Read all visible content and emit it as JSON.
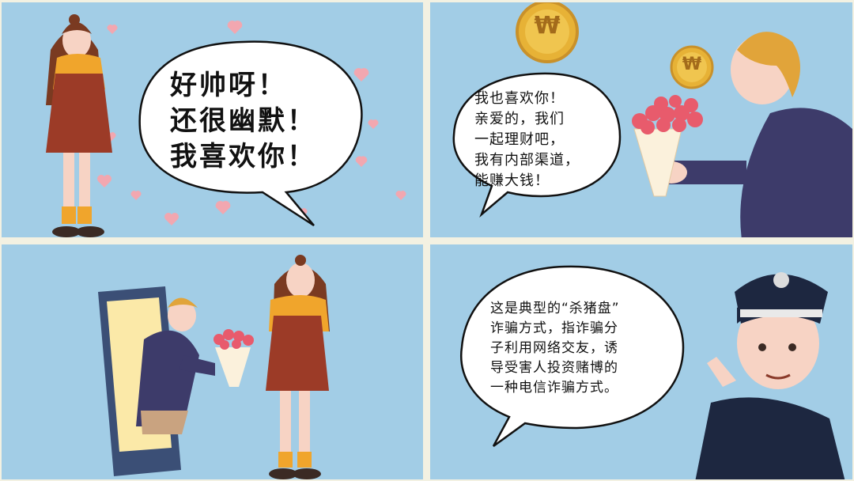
{
  "panel1": {
    "speech": [
      "好帅呀！",
      "还很幽默！",
      "我喜欢你！"
    ]
  },
  "panel2": {
    "coin_symbol": "₩",
    "speech": [
      "我也喜欢你！",
      "亲爱的，我们",
      "一起理财吧，",
      "我有内部渠道，",
      "能赚大钱！"
    ]
  },
  "panel3": {},
  "panel4": {
    "speech": [
      "这是典型的“杀猪盘”",
      "诈骗方式，指诈骗分",
      "子利用网络交友，诱",
      "导受害人投资赌博的",
      "一种电信诈骗方式。"
    ]
  },
  "colors": {
    "background": "#a2cde6",
    "gutter": "#f3f1e2",
    "dress": "#9c3b27",
    "sweater": "#f0a52c",
    "hair_girl": "#7a3a21",
    "hair_man": "#e1a43a",
    "man_jacket": "#3d3b6a",
    "coin": "#e7b236",
    "roses": "#e85b6c",
    "police_navy": "#1d2740"
  }
}
